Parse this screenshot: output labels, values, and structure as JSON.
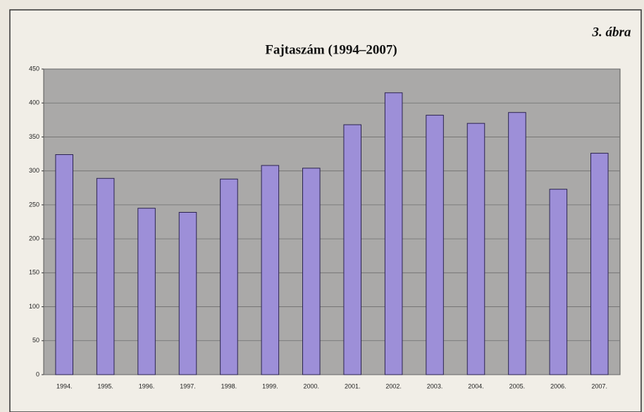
{
  "chart_data": {
    "type": "bar",
    "title": "Fajtaszám (1994–2007)",
    "annotation": "3. ábra",
    "categories": [
      "1994.",
      "1995.",
      "1996.",
      "1997.",
      "1998.",
      "1999.",
      "2000.",
      "2001.",
      "2002.",
      "2003.",
      "2004.",
      "2005.",
      "2006.",
      "2007."
    ],
    "values": [
      324,
      289,
      245,
      239,
      288,
      308,
      304,
      368,
      415,
      382,
      370,
      386,
      273,
      326
    ],
    "color": "#9d8fd8",
    "ylim": [
      0,
      450
    ],
    "yticks": [
      0,
      50,
      100,
      150,
      200,
      250,
      300,
      350,
      400,
      450
    ],
    "grid": true
  }
}
